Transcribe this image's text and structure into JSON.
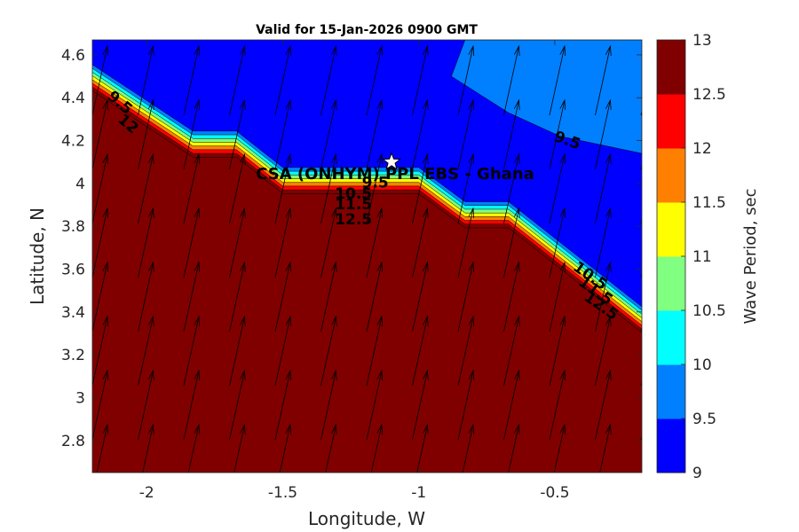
{
  "title": "Valid for 15-Jan-2026 0900 GMT",
  "xlabel": "Longitude, W",
  "ylabel": "Latitude, N",
  "site_label": "CSA (ONHYM) PPL EBS  - Ghana",
  "site_marker": {
    "lon": -1.1,
    "lat": 4.1,
    "icon": "star-icon"
  },
  "x_ticks": [
    "-2",
    "-1.5",
    "-1",
    "-0.5"
  ],
  "x_tick_values": [
    -2,
    -1.5,
    -1,
    -0.5
  ],
  "y_ticks": [
    "4.6",
    "4.4",
    "4.2",
    "4",
    "3.8",
    "3.6",
    "3.4",
    "3.2",
    "3",
    "2.8"
  ],
  "y_tick_values": [
    4.6,
    4.4,
    4.2,
    4.0,
    3.8,
    3.6,
    3.4,
    3.2,
    3.0,
    2.8
  ],
  "xlim": [
    -2.2,
    -0.18
  ],
  "ylim": [
    2.65,
    4.67
  ],
  "colorbar": {
    "label": "Wave Period, sec",
    "ticks": [
      "13",
      "12.5",
      "12",
      "11.5",
      "11",
      "10.5",
      "10",
      "9.5",
      "9"
    ],
    "levels": [
      9,
      9.5,
      10,
      10.5,
      11,
      11.5,
      12,
      12.5,
      13
    ],
    "colors": [
      "#0000ff",
      "#0080ff",
      "#00ffff",
      "#80ff80",
      "#ffff00",
      "#ff8000",
      "#ff0000",
      "#800000"
    ]
  },
  "contour_labels": [
    {
      "text": "9.5",
      "lon": -2.11,
      "lat": 4.36,
      "rot": 40
    },
    {
      "text": "12",
      "lon": -2.08,
      "lat": 4.26,
      "rot": 40
    },
    {
      "text": "9.5",
      "lon": -0.46,
      "lat": 4.18,
      "rot": 20
    },
    {
      "text": "9.5",
      "lon": -1.16,
      "lat": 3.98,
      "rot": 0
    },
    {
      "text": "10.5",
      "lon": -1.24,
      "lat": 3.93,
      "rot": 0
    },
    {
      "text": "11.5",
      "lon": -1.24,
      "lat": 3.88,
      "rot": 0
    },
    {
      "text": "12.5",
      "lon": -1.24,
      "lat": 3.81,
      "rot": 0
    },
    {
      "text": "10.5",
      "lon": -0.38,
      "lat": 3.55,
      "rot": 35
    },
    {
      "text": "11.5",
      "lon": -0.36,
      "lat": 3.48,
      "rot": 35
    },
    {
      "text": "12.5",
      "lon": -0.34,
      "lat": 3.41,
      "rot": 35
    }
  ],
  "chart_data": {
    "type": "contour",
    "field": "Wave Period, sec",
    "levels": [
      9,
      9.5,
      10,
      10.5,
      11,
      11.5,
      12,
      12.5,
      13
    ],
    "bands": [
      {
        "range": [
          9,
          9.5
        ],
        "color": "#0000ff"
      },
      {
        "range": [
          9.5,
          10
        ],
        "color": "#0080ff"
      },
      {
        "range": [
          10,
          10.5
        ],
        "color": "#00ffff"
      },
      {
        "range": [
          10.5,
          11
        ],
        "color": "#80ff80"
      },
      {
        "range": [
          11,
          11.5
        ],
        "color": "#ffff00"
      },
      {
        "range": [
          11.5,
          12
        ],
        "color": "#ff8000"
      },
      {
        "range": [
          12,
          12.5
        ],
        "color": "#ff0000"
      },
      {
        "range": [
          12.5,
          13
        ],
        "color": "#800000"
      }
    ],
    "front_line": [
      [
        -2.2,
        4.45
      ],
      [
        -1.83,
        4.14
      ],
      [
        -1.67,
        4.14
      ],
      [
        -1.5,
        3.97
      ],
      [
        -1.0,
        3.97
      ],
      [
        -0.83,
        3.81
      ],
      [
        -0.67,
        3.81
      ],
      [
        -0.18,
        3.32
      ]
    ],
    "offshore_band_9_5": [
      [
        -0.83,
        4.67
      ],
      [
        -0.18,
        4.67
      ],
      [
        -0.18,
        4.14
      ],
      [
        -0.48,
        4.22
      ],
      [
        -0.67,
        4.33
      ],
      [
        -0.88,
        4.5
      ]
    ],
    "arrow_direction": "NNE",
    "xlabel": "Longitude, W",
    "ylabel": "Latitude, N"
  }
}
